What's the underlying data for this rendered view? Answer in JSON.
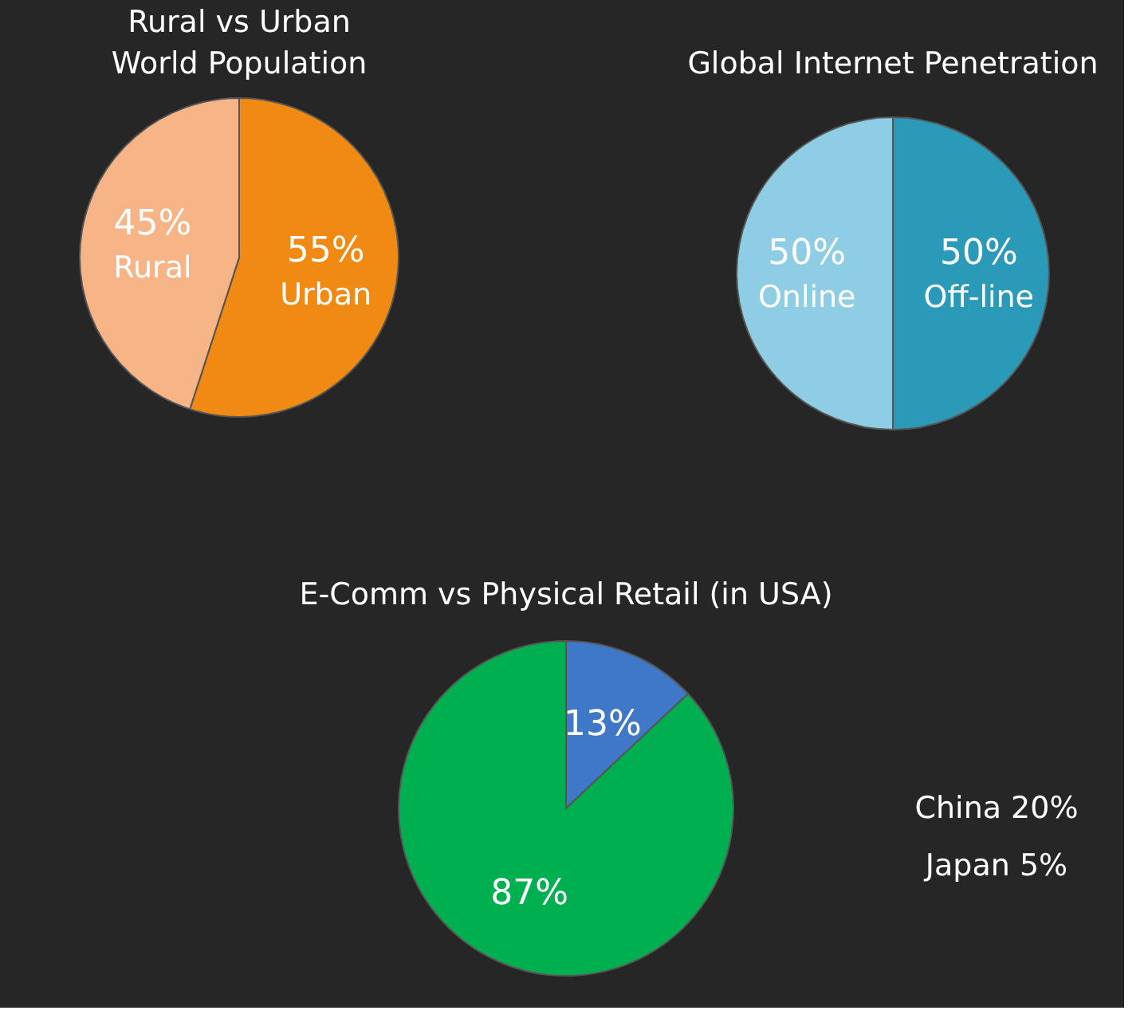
{
  "chart_data": [
    {
      "type": "pie",
      "title": "Rural vs Urban\nWorld Population",
      "categories": [
        "Urban",
        "Rural"
      ],
      "values": [
        55,
        45
      ],
      "colors": [
        "#f08a12",
        "#f7b487"
      ],
      "value_labels": [
        "55%",
        "45%"
      ]
    },
    {
      "type": "pie",
      "title": "Global Internet Penetration",
      "categories": [
        "Off-line",
        "Online"
      ],
      "values": [
        50,
        50
      ],
      "colors": [
        "#2a9ab8",
        "#8ecde4"
      ],
      "value_labels": [
        "50%",
        "50%"
      ]
    },
    {
      "type": "pie",
      "title": "E-Comm vs Physical Retail (in USA)",
      "categories": [
        null,
        null
      ],
      "values": [
        13,
        87
      ],
      "colors": [
        "#3f78c6",
        "#00b050"
      ],
      "value_labels": [
        "13%",
        "87%"
      ],
      "annotations": [
        "China 20%",
        "Japan 5%"
      ]
    }
  ]
}
